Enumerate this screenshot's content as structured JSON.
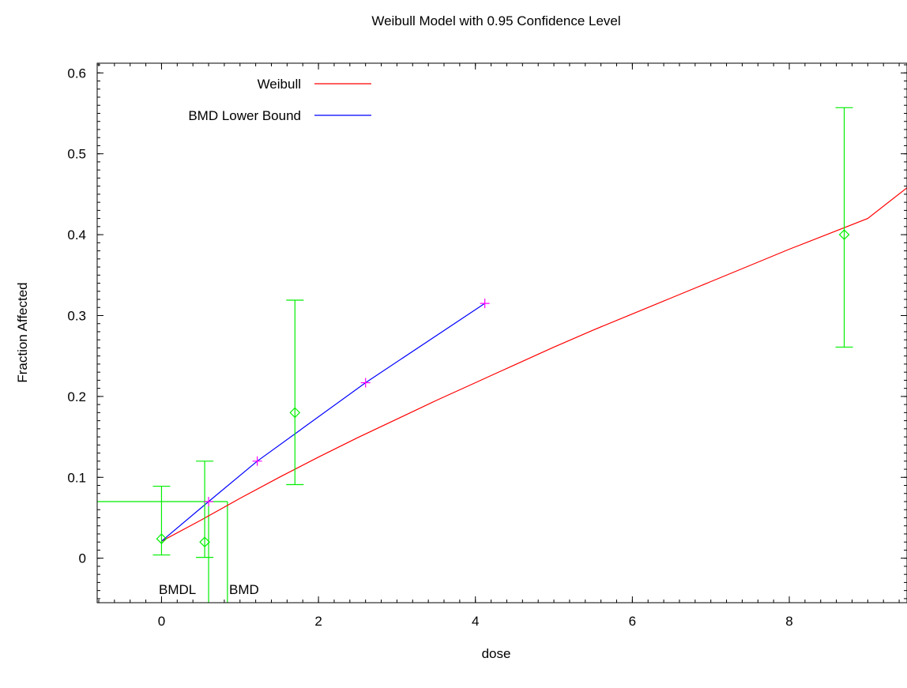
{
  "chart_data": {
    "type": "line",
    "title": "Weibull Model with 0.95 Confidence Level",
    "xlabel": "dose",
    "ylabel": "Fraction Affected",
    "xlim": [
      -0.82,
      9.5
    ],
    "ylim": [
      -0.055,
      0.612
    ],
    "x_ticks": [
      0,
      2,
      4,
      6,
      8
    ],
    "y_ticks": [
      0,
      0.1,
      0.2,
      0.3,
      0.4,
      0.5,
      0.6
    ],
    "x_tick_labels": [
      "0",
      "2",
      "4",
      "6",
      "8"
    ],
    "y_tick_labels": [
      "0",
      "0.1",
      "0.2",
      "0.3",
      "0.4",
      "0.5",
      "0.6"
    ],
    "legend_position": "top-left",
    "colors": {
      "weibull": "#ff0000",
      "bmdl": "#0000ff",
      "observed": "#00ee00",
      "bmdl_points": "#ff00ff",
      "frame": "#000000"
    },
    "series": [
      {
        "name": "Weibull",
        "role": "fitted",
        "x": [
          0,
          0.5,
          1,
          1.5,
          2,
          2.5,
          3,
          3.5,
          4,
          4.5,
          5,
          5.5,
          6,
          6.5,
          7,
          7.5,
          8,
          8.5,
          9,
          9.5
        ],
        "y": [
          0.021,
          0.047,
          0.074,
          0.1,
          0.125,
          0.149,
          0.172,
          0.195,
          0.217,
          0.239,
          0.261,
          0.282,
          0.302,
          0.322,
          0.342,
          0.362,
          0.382,
          0.401,
          0.42,
          0.458
        ]
      },
      {
        "name": "BMD Lower Bound",
        "role": "bmdl_curve",
        "x": [
          0,
          0.6,
          1.22,
          2.6,
          4.12
        ],
        "y": [
          0.021,
          0.07,
          0.12,
          0.217,
          0.315
        ]
      }
    ],
    "observed": {
      "marker": "diamond",
      "x": [
        0,
        0.55,
        1.7,
        8.7
      ],
      "y": [
        0.024,
        0.02,
        0.18,
        0.4
      ],
      "lower": [
        0.004,
        0.001,
        0.091,
        0.261
      ],
      "upper": [
        0.089,
        0.12,
        0.319,
        0.557
      ]
    },
    "bmd_markers": {
      "bmr_level": 0.07,
      "bmdl": 0.6,
      "bmd": 0.84,
      "labels": [
        "BMDL",
        "BMD"
      ]
    }
  }
}
